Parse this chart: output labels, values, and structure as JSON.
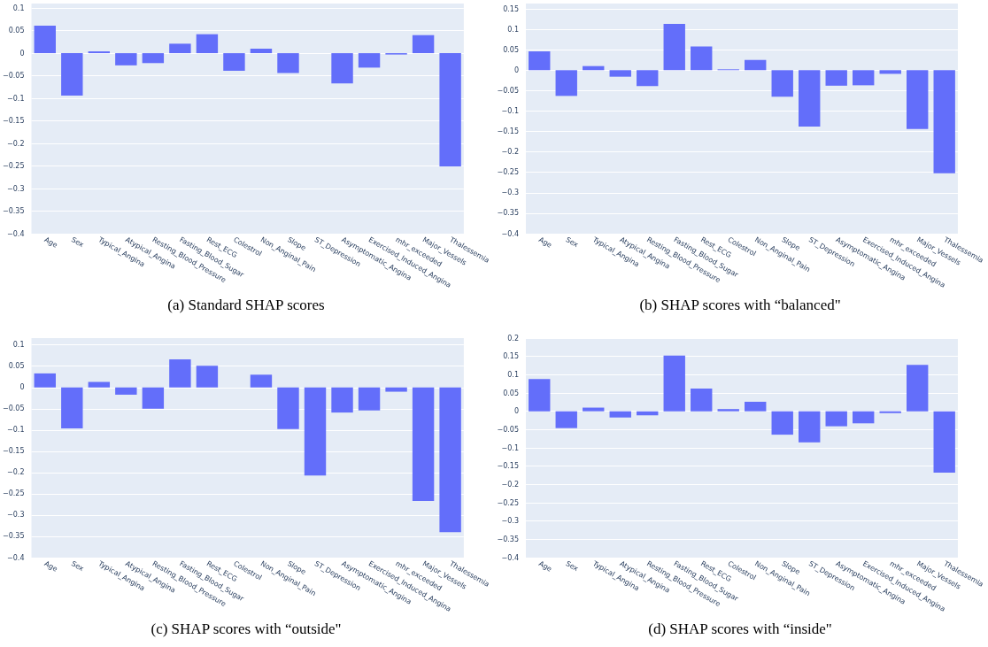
{
  "chart_data": [
    {
      "type": "bar",
      "title": "(a) Standard SHAP scores",
      "categories": [
        "Age",
        "Sex",
        "Typical_Angina",
        "Atypical_Angina",
        "Resting_Blood_Pressure",
        "Fasting_Blood_Sugar",
        "Rest_ECG",
        "Colestrol",
        "Non_Anginal_Pain",
        "Slope",
        "ST_Depression",
        "Asymptomatic_Angina",
        "Exercised_Induced_Angina",
        "mhr_exceeded",
        "Major_Vessels",
        "Thalessemia"
      ],
      "values": [
        0.061,
        -0.094,
        0.004,
        -0.027,
        -0.022,
        0.021,
        0.042,
        -0.039,
        0.01,
        -0.044,
        0,
        -0.067,
        -0.032,
        -0.003,
        0.04,
        -0.251
      ],
      "color": "#636efa",
      "ylim": [
        -0.4,
        0.11
      ],
      "yticks": [
        -0.4,
        -0.35,
        -0.3,
        -0.25,
        -0.2,
        -0.15,
        -0.1,
        -0.05,
        0,
        0.05,
        0.1
      ],
      "grid": "y"
    },
    {
      "type": "bar",
      "title": "(b) SHAP scores with “balanced\"",
      "categories": [
        "Age",
        "Sex",
        "Typical_Angina",
        "Atypical_Angina",
        "Resting_Blood_Pressure",
        "Fasting_Blood_Sugar",
        "Rest_ECG",
        "Colestrol",
        "Non_Anginal_Pain",
        "Slope",
        "ST_Depression",
        "Asymptomatic_Angina",
        "Exercised_Induced_Angina",
        "mhr_exceeded",
        "Major_Vessels",
        "Thalessemia"
      ],
      "values": [
        0.046,
        -0.063,
        0.01,
        -0.016,
        -0.039,
        0.113,
        0.058,
        0.002,
        0.025,
        -0.065,
        -0.138,
        -0.038,
        -0.037,
        -0.009,
        -0.144,
        -0.252
      ],
      "color": "#636efa",
      "ylim": [
        -0.4,
        0.163
      ],
      "yticks": [
        -0.4,
        -0.35,
        -0.3,
        -0.25,
        -0.2,
        -0.15,
        -0.1,
        -0.05,
        0,
        0.05,
        0.1,
        0.15
      ],
      "grid": "y"
    },
    {
      "type": "bar",
      "title": "(c) SHAP scores with “outside\"",
      "categories": [
        "Age",
        "Sex",
        "Typical_Angina",
        "Atypical_Angina",
        "Resting_Blood_Pressure",
        "Fasting_Blood_Sugar",
        "Rest_ECG",
        "Colestrol",
        "Non_Anginal_Pain",
        "Slope",
        "ST_Depression",
        "Asymptomatic_Angina",
        "Exercised_Induced_Angina",
        "mhr_exceeded",
        "Major_Vessels",
        "Thalessemia"
      ],
      "values": [
        0.033,
        -0.096,
        0.013,
        -0.017,
        -0.05,
        0.066,
        0.051,
        0,
        0.03,
        -0.098,
        -0.207,
        -0.059,
        -0.054,
        -0.01,
        -0.267,
        -0.34
      ],
      "color": "#636efa",
      "ylim": [
        -0.4,
        0.116
      ],
      "yticks": [
        -0.4,
        -0.35,
        -0.3,
        -0.25,
        -0.2,
        -0.15,
        -0.1,
        -0.05,
        0,
        0.05,
        0.1
      ],
      "grid": "y"
    },
    {
      "type": "bar",
      "title": "(d) SHAP scores with “inside\"",
      "categories": [
        "Age",
        "Sex",
        "Typical_Angina",
        "Atypical_Angina",
        "Resting_Blood_Pressure",
        "Fasting_Blood_Sugar",
        "Rest_ECG",
        "Colestrol",
        "Non_Anginal_Pain",
        "Slope",
        "ST_Depression",
        "Asymptomatic_Angina",
        "Exercised_Induced_Angina",
        "mhr_exceeded",
        "Major_Vessels",
        "Thalessemia"
      ],
      "values": [
        0.088,
        -0.046,
        0.01,
        -0.017,
        -0.011,
        0.152,
        0.062,
        0.006,
        0.026,
        -0.064,
        -0.085,
        -0.041,
        -0.033,
        -0.005,
        0.127,
        -0.168
      ],
      "color": "#636efa",
      "ylim": [
        -0.4,
        0.2
      ],
      "yticks": [
        -0.4,
        -0.35,
        -0.3,
        -0.25,
        -0.2,
        -0.15,
        -0.1,
        -0.05,
        0,
        0.05,
        0.1,
        0.15,
        0.2
      ],
      "grid": "y"
    }
  ]
}
